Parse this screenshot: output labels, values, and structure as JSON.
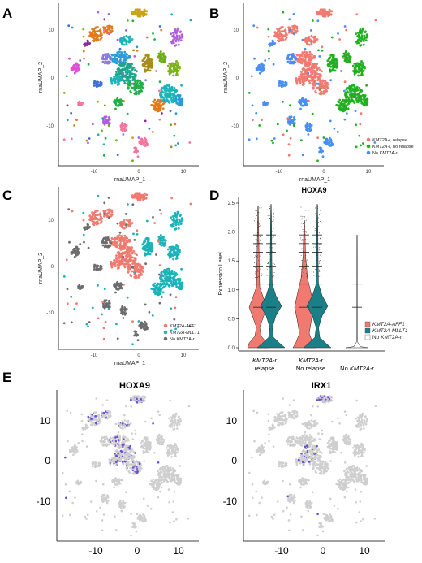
{
  "panels": {
    "A": {
      "label": "A",
      "xlabel": "rnaUMAP_1",
      "ylabel": "rnaUMAP_2",
      "xticks": [
        "-10",
        "0",
        "10"
      ],
      "yticks": [
        "10",
        "0",
        "-10"
      ]
    },
    "B": {
      "label": "B",
      "xlabel": "rnaUMAP_1",
      "ylabel": "rnaUMAP_2",
      "xticks": [
        "-10",
        "0",
        "10"
      ],
      "yticks": [
        "10",
        "0",
        "-10"
      ],
      "legend": [
        {
          "pre": "KMT2A-r",
          "post": ", relapse",
          "color": "#f07a70"
        },
        {
          "pre": "KMT2A-r",
          "post": ", no relapse",
          "color": "#22b022"
        },
        {
          "pre": "No ",
          "post": "KMT2A-r",
          "color": "#4b8ef0"
        }
      ]
    },
    "C": {
      "label": "C",
      "xlabel": "rnaUMAP_1",
      "ylabel": "rnaUMAP_2",
      "xticks": [
        "-10",
        "0",
        "10"
      ],
      "yticks": [
        "10",
        "0",
        "-10"
      ],
      "legend": [
        {
          "text": "KMT2A-AFF1",
          "color": "#f07a70"
        },
        {
          "text": "KMT2A-MLLT1",
          "color": "#1ab3b8"
        },
        {
          "text": "No KMT2A-r",
          "color": "#6d6d6d"
        }
      ]
    },
    "D": {
      "label": "D",
      "title": "HOXA9",
      "ylabel": "Expression Level",
      "yticks": [
        "2.5",
        "2.0",
        "1.5",
        "1.0",
        "0.5",
        "0.0"
      ],
      "legend": [
        {
          "text": "KMT2A-AFF1",
          "color": "#f07a70"
        },
        {
          "text": "KMT2A-MLLT1",
          "color": "#1a7f86"
        },
        {
          "text": "No KMT2A-r",
          "color": "#ffffff"
        }
      ],
      "categories": [
        {
          "line1": "KMT2A-r",
          "line2": "relapse"
        },
        {
          "line1": "KMT2A-r",
          "line2": "No relapse"
        },
        {
          "line1": "No ",
          "line2": "KMT2A-r"
        }
      ]
    },
    "E": {
      "label": "E",
      "title_left": "HOXA9",
      "title_right": "IRX1",
      "xticks": [
        "-10",
        "0",
        "10"
      ],
      "yticks": [
        "10",
        "0",
        "-10"
      ]
    }
  },
  "chart_data": {
    "type": "violin",
    "title": "HOXA9",
    "ylabel": "Expression Level",
    "ylim": [
      0,
      2.5
    ],
    "categories": [
      "KMT2A-r relapse",
      "KMT2A-r No relapse",
      "No KMT2A-r"
    ],
    "series": [
      {
        "name": "KMT2A-AFF1",
        "modes": [
          0.0,
          0.7
        ]
      },
      {
        "name": "KMT2A-MLLT1",
        "modes": [
          0.0,
          0.7
        ]
      },
      {
        "name": "No KMT2A-r",
        "modes": [
          0.0
        ]
      }
    ]
  },
  "colors": {
    "clusters": [
      "#c9a516",
      "#e07a1c",
      "#a58d1a",
      "#1ab3b8",
      "#2c9ad6",
      "#1fa58a",
      "#23b04a",
      "#8c7bd8",
      "#b05fe0",
      "#e04fd8",
      "#f2759d",
      "#7cb21a",
      "#6aae14",
      "#3e6fd6",
      "#8b2c9c"
    ],
    "relapse": "#f07a70",
    "norelapse": "#22b022",
    "nokmt": "#4b8ef0",
    "aff1": "#f07a70",
    "mllt1": "#1ab3b8",
    "grey": "#6d6d6d",
    "umap_bg": "#cfcfcf",
    "expr": "#6a4fd4"
  }
}
